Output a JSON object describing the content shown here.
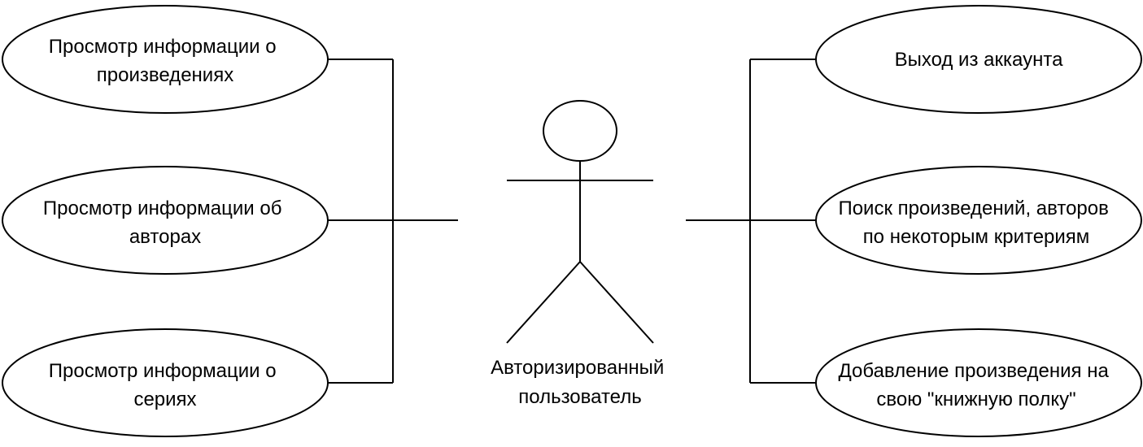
{
  "diagram": {
    "type": "use-case",
    "actor": {
      "label_lines": [
        "Авторизированный",
        "пользователь"
      ]
    },
    "use_cases_left": [
      {
        "lines": [
          "Просмотр информации о",
          "произведениях"
        ]
      },
      {
        "lines": [
          "Просмотр информации об",
          "авторах"
        ]
      },
      {
        "lines": [
          "Просмотр информации о",
          "сериях"
        ]
      }
    ],
    "use_cases_right": [
      {
        "lines": [
          "Выход из аккаунта"
        ]
      },
      {
        "lines": [
          "Поиск произведений, авторов",
          "по некоторым критериям"
        ]
      },
      {
        "lines": [
          "Добавление произведения на",
          "свою \"книжную полку\""
        ]
      }
    ],
    "colors": {
      "stroke": "#000000",
      "fill": "#ffffff"
    }
  }
}
